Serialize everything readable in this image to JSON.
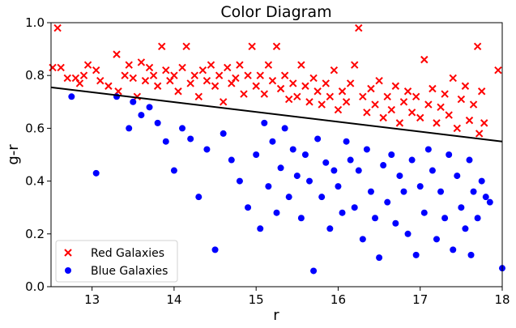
{
  "chart_data": {
    "type": "scatter",
    "title": "Color Diagram",
    "xlabel": "r",
    "ylabel": "g-r",
    "xlim": [
      12.5,
      18.0
    ],
    "ylim": [
      0.0,
      1.0
    ],
    "xticks": [
      "13",
      "14",
      "15",
      "16",
      "17",
      "18"
    ],
    "yticks": [
      "0.0",
      "0.2",
      "0.4",
      "0.6",
      "0.8",
      "1.0"
    ],
    "grid": false,
    "legend_position": "lower-left",
    "line": {
      "x": [
        12.5,
        18.0
      ],
      "y": [
        0.755,
        0.55
      ],
      "color": "#000000"
    },
    "series": [
      {
        "name": "Red Galaxies",
        "marker": "x",
        "color": "#ff0000",
        "points": [
          [
            12.52,
            0.83
          ],
          [
            12.58,
            0.98
          ],
          [
            12.62,
            0.83
          ],
          [
            12.7,
            0.79
          ],
          [
            12.8,
            0.79
          ],
          [
            12.85,
            0.77
          ],
          [
            12.9,
            0.8
          ],
          [
            12.95,
            0.84
          ],
          [
            13.05,
            0.82
          ],
          [
            13.1,
            0.78
          ],
          [
            13.2,
            0.76
          ],
          [
            13.3,
            0.88
          ],
          [
            13.32,
            0.74
          ],
          [
            13.4,
            0.8
          ],
          [
            13.45,
            0.84
          ],
          [
            13.5,
            0.79
          ],
          [
            13.55,
            0.72
          ],
          [
            13.6,
            0.85
          ],
          [
            13.65,
            0.78
          ],
          [
            13.7,
            0.83
          ],
          [
            13.75,
            0.8
          ],
          [
            13.8,
            0.76
          ],
          [
            13.85,
            0.91
          ],
          [
            13.9,
            0.82
          ],
          [
            13.95,
            0.78
          ],
          [
            14.0,
            0.8
          ],
          [
            14.05,
            0.74
          ],
          [
            14.1,
            0.83
          ],
          [
            14.15,
            0.91
          ],
          [
            14.2,
            0.77
          ],
          [
            14.25,
            0.8
          ],
          [
            14.3,
            0.72
          ],
          [
            14.35,
            0.82
          ],
          [
            14.4,
            0.78
          ],
          [
            14.45,
            0.84
          ],
          [
            14.5,
            0.76
          ],
          [
            14.55,
            0.8
          ],
          [
            14.6,
            0.7
          ],
          [
            14.65,
            0.83
          ],
          [
            14.7,
            0.77
          ],
          [
            14.75,
            0.79
          ],
          [
            14.8,
            0.84
          ],
          [
            14.85,
            0.73
          ],
          [
            14.9,
            0.8
          ],
          [
            14.95,
            0.91
          ],
          [
            15.0,
            0.76
          ],
          [
            15.05,
            0.8
          ],
          [
            15.1,
            0.73
          ],
          [
            15.15,
            0.84
          ],
          [
            15.2,
            0.78
          ],
          [
            15.25,
            0.91
          ],
          [
            15.3,
            0.75
          ],
          [
            15.35,
            0.8
          ],
          [
            15.4,
            0.71
          ],
          [
            15.45,
            0.77
          ],
          [
            15.5,
            0.72
          ],
          [
            15.55,
            0.84
          ],
          [
            15.6,
            0.76
          ],
          [
            15.65,
            0.7
          ],
          [
            15.7,
            0.79
          ],
          [
            15.75,
            0.74
          ],
          [
            15.8,
            0.69
          ],
          [
            15.85,
            0.77
          ],
          [
            15.9,
            0.72
          ],
          [
            15.95,
            0.82
          ],
          [
            16.0,
            0.67
          ],
          [
            16.05,
            0.74
          ],
          [
            16.1,
            0.7
          ],
          [
            16.15,
            0.77
          ],
          [
            16.2,
            0.84
          ],
          [
            16.25,
            0.98
          ],
          [
            16.3,
            0.72
          ],
          [
            16.35,
            0.66
          ],
          [
            16.4,
            0.75
          ],
          [
            16.45,
            0.69
          ],
          [
            16.5,
            0.78
          ],
          [
            16.55,
            0.64
          ],
          [
            16.6,
            0.72
          ],
          [
            16.65,
            0.67
          ],
          [
            16.7,
            0.76
          ],
          [
            16.75,
            0.62
          ],
          [
            16.8,
            0.7
          ],
          [
            16.85,
            0.74
          ],
          [
            16.9,
            0.66
          ],
          [
            16.95,
            0.72
          ],
          [
            17.0,
            0.64
          ],
          [
            17.05,
            0.86
          ],
          [
            17.1,
            0.69
          ],
          [
            17.15,
            0.75
          ],
          [
            17.2,
            0.62
          ],
          [
            17.25,
            0.68
          ],
          [
            17.3,
            0.73
          ],
          [
            17.35,
            0.65
          ],
          [
            17.4,
            0.79
          ],
          [
            17.45,
            0.6
          ],
          [
            17.5,
            0.71
          ],
          [
            17.55,
            0.76
          ],
          [
            17.6,
            0.63
          ],
          [
            17.65,
            0.69
          ],
          [
            17.7,
            0.91
          ],
          [
            17.72,
            0.58
          ],
          [
            17.75,
            0.74
          ],
          [
            17.78,
            0.62
          ],
          [
            17.95,
            0.82
          ]
        ]
      },
      {
        "name": "Blue Galaxies",
        "marker": "o",
        "color": "#0000ff",
        "points": [
          [
            12.75,
            0.72
          ],
          [
            13.05,
            0.43
          ],
          [
            13.3,
            0.72
          ],
          [
            13.45,
            0.6
          ],
          [
            13.5,
            0.7
          ],
          [
            13.6,
            0.65
          ],
          [
            13.7,
            0.68
          ],
          [
            13.8,
            0.62
          ],
          [
            13.9,
            0.55
          ],
          [
            14.0,
            0.44
          ],
          [
            14.1,
            0.6
          ],
          [
            14.2,
            0.56
          ],
          [
            14.3,
            0.34
          ],
          [
            14.4,
            0.52
          ],
          [
            14.5,
            0.14
          ],
          [
            14.6,
            0.58
          ],
          [
            14.7,
            0.48
          ],
          [
            14.8,
            0.4
          ],
          [
            14.9,
            0.3
          ],
          [
            15.0,
            0.5
          ],
          [
            15.05,
            0.22
          ],
          [
            15.1,
            0.62
          ],
          [
            15.15,
            0.38
          ],
          [
            15.2,
            0.55
          ],
          [
            15.25,
            0.28
          ],
          [
            15.3,
            0.45
          ],
          [
            15.35,
            0.6
          ],
          [
            15.4,
            0.34
          ],
          [
            15.45,
            0.52
          ],
          [
            15.5,
            0.42
          ],
          [
            15.55,
            0.26
          ],
          [
            15.6,
            0.5
          ],
          [
            15.65,
            0.4
          ],
          [
            15.7,
            0.06
          ],
          [
            15.75,
            0.56
          ],
          [
            15.8,
            0.34
          ],
          [
            15.85,
            0.47
          ],
          [
            15.9,
            0.22
          ],
          [
            15.95,
            0.44
          ],
          [
            16.0,
            0.38
          ],
          [
            16.05,
            0.28
          ],
          [
            16.1,
            0.55
          ],
          [
            16.15,
            0.48
          ],
          [
            16.2,
            0.3
          ],
          [
            16.25,
            0.44
          ],
          [
            16.3,
            0.18
          ],
          [
            16.35,
            0.52
          ],
          [
            16.4,
            0.36
          ],
          [
            16.45,
            0.26
          ],
          [
            16.5,
            0.11
          ],
          [
            16.55,
            0.46
          ],
          [
            16.6,
            0.32
          ],
          [
            16.65,
            0.5
          ],
          [
            16.7,
            0.24
          ],
          [
            16.75,
            0.42
          ],
          [
            16.8,
            0.36
          ],
          [
            16.85,
            0.2
          ],
          [
            16.9,
            0.48
          ],
          [
            16.95,
            0.12
          ],
          [
            17.0,
            0.38
          ],
          [
            17.05,
            0.28
          ],
          [
            17.1,
            0.52
          ],
          [
            17.15,
            0.44
          ],
          [
            17.2,
            0.18
          ],
          [
            17.25,
            0.36
          ],
          [
            17.3,
            0.26
          ],
          [
            17.35,
            0.5
          ],
          [
            17.4,
            0.14
          ],
          [
            17.45,
            0.42
          ],
          [
            17.5,
            0.3
          ],
          [
            17.55,
            0.22
          ],
          [
            17.6,
            0.48
          ],
          [
            17.62,
            0.12
          ],
          [
            17.65,
            0.36
          ],
          [
            17.7,
            0.26
          ],
          [
            17.75,
            0.4
          ],
          [
            17.8,
            0.34
          ],
          [
            17.85,
            0.32
          ],
          [
            18.0,
            0.07
          ]
        ]
      }
    ]
  }
}
